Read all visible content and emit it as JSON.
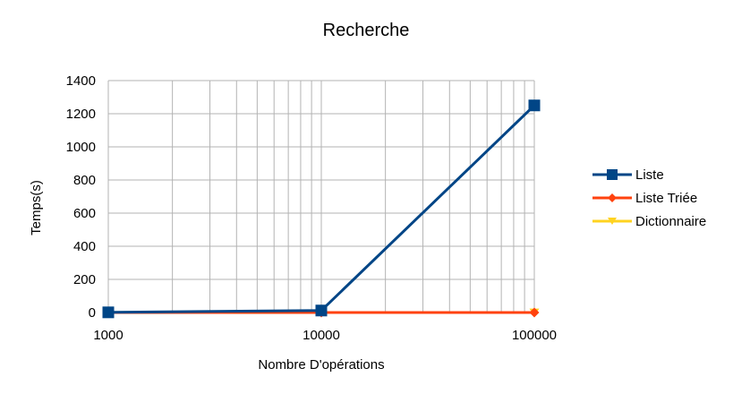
{
  "chart_data": {
    "type": "line",
    "title": "Recherche",
    "xlabel": "Nombre D'opérations",
    "ylabel": "Temps(s)",
    "x_scale": "log",
    "x": [
      1000,
      10000,
      100000
    ],
    "x_tick_labels": [
      "1000",
      "10000",
      "100000"
    ],
    "ylim": [
      0,
      1400
    ],
    "y_ticks": [
      0,
      200,
      400,
      600,
      800,
      1000,
      1200,
      1400
    ],
    "grid": true,
    "legend_position": "right",
    "series": [
      {
        "name": "Liste",
        "values": [
          1,
          12,
          1250
        ],
        "color": "#004586",
        "marker": "square"
      },
      {
        "name": "Liste Triée",
        "values": [
          0,
          0,
          0
        ],
        "color": "#ff420e",
        "marker": "diamond"
      },
      {
        "name": "Dictionnaire",
        "values": [
          0,
          0,
          0
        ],
        "color": "#ffd320",
        "marker": "triangle-down"
      }
    ]
  }
}
